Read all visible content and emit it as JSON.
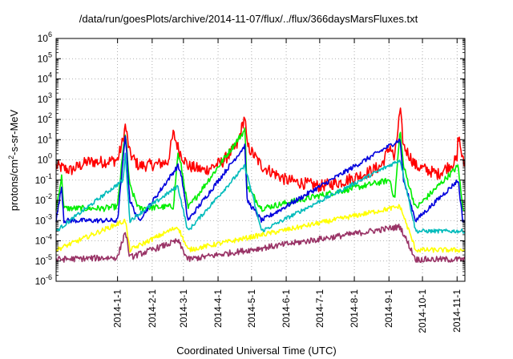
{
  "chart_data": {
    "type": "line",
    "title": "/data/run/goesPlots/archive/2014-11-07/flux/../flux/366daysMarsFluxes.txt",
    "xlabel": "Coordinated Universal Time (UTC)",
    "ylabel_parts": {
      "pre": "protons/cm",
      "sup": "2",
      "post": "-s-sr-MeV"
    },
    "x_ticks": [
      "2014-1-1",
      "2014-2-1",
      "2014-3-1",
      "2014-4-1",
      "2014-5-1",
      "2014-6-1",
      "2014-7-1",
      "2014-8-1",
      "2014-9-1",
      "2014-10-1",
      "2014-11-1"
    ],
    "x_range": [
      "2013-11-07",
      "2014-11-08"
    ],
    "y_scale": "log",
    "y_range": [
      1e-06,
      1000000.0
    ],
    "y_tick_labels": [
      {
        "base": "10",
        "exp": "-6"
      },
      {
        "base": "10",
        "exp": "-5"
      },
      {
        "base": "10",
        "exp": "-4"
      },
      {
        "base": "10",
        "exp": "-3"
      },
      {
        "base": "10",
        "exp": "-2"
      },
      {
        "base": "10",
        "exp": "-1"
      },
      {
        "base": "10",
        "exp": "0"
      },
      {
        "base": "10",
        "exp": "1"
      },
      {
        "base": "10",
        "exp": "2"
      },
      {
        "base": "10",
        "exp": "3"
      },
      {
        "base": "10",
        "exp": "4"
      },
      {
        "base": "10",
        "exp": "5"
      },
      {
        "base": "10",
        "exp": "6"
      }
    ],
    "grid": true,
    "series": [
      {
        "color": "#ff0000",
        "base_log": -0.2,
        "noise": 0.3,
        "points": [
          [
            "2013-11-07",
            0.5
          ],
          [
            "2013-11-20",
            0.3
          ],
          [
            "2013-12-05",
            0.8
          ],
          [
            "2013-12-20",
            0.8
          ],
          [
            "2014-01-01",
            1.0
          ],
          [
            "2014-01-06",
            10.0
          ],
          [
            "2014-01-08",
            50.0
          ],
          [
            "2014-01-12",
            2.0
          ],
          [
            "2014-01-20",
            0.5
          ],
          [
            "2014-02-05",
            0.6
          ],
          [
            "2014-02-15",
            0.8
          ],
          [
            "2014-02-20",
            20.0
          ],
          [
            "2014-02-25",
            3.0
          ],
          [
            "2014-03-05",
            0.5
          ],
          [
            "2014-03-20",
            0.3
          ],
          [
            "2014-04-05",
            0.8
          ],
          [
            "2014-04-18",
            5.0
          ],
          [
            "2014-04-25",
            150.0
          ],
          [
            "2014-04-27",
            5.0
          ],
          [
            "2014-05-10",
            0.5
          ],
          [
            "2014-06-01",
            0.1
          ],
          [
            "2014-07-01",
            0.05
          ],
          [
            "2014-07-20",
            0.08
          ],
          [
            "2014-08-10",
            0.2
          ],
          [
            "2014-08-25",
            0.5
          ],
          [
            "2014-09-02",
            5.0
          ],
          [
            "2014-09-06",
            1.0
          ],
          [
            "2014-09-11",
            300.0
          ],
          [
            "2014-09-14",
            5.0
          ],
          [
            "2014-09-25",
            0.5
          ],
          [
            "2014-10-15",
            0.2
          ],
          [
            "2014-11-01",
            1.0
          ],
          [
            "2014-11-02",
            20.0
          ],
          [
            "2014-11-06",
            1.0
          ],
          [
            "2014-11-08",
            0.5
          ]
        ]
      },
      {
        "color": "#00ee00",
        "base_log": -2.4,
        "noise": 0.15,
        "points": [
          [
            "2013-11-07",
            0.004
          ],
          [
            "2013-11-12",
            0.15
          ],
          [
            "2013-11-14",
            0.004
          ],
          [
            "2013-12-20",
            0.004
          ],
          [
            "2014-01-01",
            0.005
          ],
          [
            "2014-01-06",
            3.0
          ],
          [
            "2014-01-08",
            20.0
          ],
          [
            "2014-01-12",
            0.05
          ],
          [
            "2014-01-20",
            0.004
          ],
          [
            "2014-02-20",
            0.005
          ],
          [
            "2014-02-24",
            2.0
          ],
          [
            "2014-02-27",
            0.5
          ],
          [
            "2014-03-05",
            0.004
          ],
          [
            "2014-04-25",
            30.0
          ],
          [
            "2014-04-27",
            0.05
          ],
          [
            "2014-05-10",
            0.004
          ],
          [
            "2014-09-02",
            0.1
          ],
          [
            "2014-09-06",
            0.01
          ],
          [
            "2014-09-11",
            30.0
          ],
          [
            "2014-09-14",
            0.5
          ],
          [
            "2014-09-25",
            0.004
          ],
          [
            "2014-11-02",
            0.5
          ],
          [
            "2014-11-06",
            0.004
          ]
        ]
      },
      {
        "color": "#0000dd",
        "base_log": -2.9,
        "noise": 0.12,
        "points": [
          [
            "2013-11-07",
            0.001
          ],
          [
            "2013-11-12",
            0.05
          ],
          [
            "2013-11-14",
            0.001
          ],
          [
            "2014-01-01",
            0.001
          ],
          [
            "2014-01-06",
            1.0
          ],
          [
            "2014-01-08",
            20.0
          ],
          [
            "2014-01-12",
            0.01
          ],
          [
            "2014-01-20",
            0.001
          ],
          [
            "2014-02-24",
            0.5
          ],
          [
            "2014-02-27",
            0.2
          ],
          [
            "2014-03-05",
            0.001
          ],
          [
            "2014-04-25",
            5.0
          ],
          [
            "2014-04-27",
            0.01
          ],
          [
            "2014-05-10",
            0.001
          ],
          [
            "2014-09-11",
            10.0
          ],
          [
            "2014-09-14",
            0.1
          ],
          [
            "2014-09-25",
            0.001
          ],
          [
            "2014-11-02",
            0.1
          ],
          [
            "2014-11-06",
            0.001
          ]
        ]
      },
      {
        "color": "#00bbbb",
        "base_log": -3.5,
        "noise": 0.1,
        "points": [
          [
            "2013-11-07",
            0.0003
          ],
          [
            "2014-01-06",
            0.1
          ],
          [
            "2014-01-08",
            2.0
          ],
          [
            "2014-01-12",
            0.001
          ],
          [
            "2014-02-24",
            0.05
          ],
          [
            "2014-03-05",
            0.0003
          ],
          [
            "2014-04-25",
            0.5
          ],
          [
            "2014-05-10",
            0.0003
          ],
          [
            "2014-09-11",
            1.0
          ],
          [
            "2014-09-25",
            0.0003
          ],
          [
            "2014-11-06",
            0.0003
          ]
        ]
      },
      {
        "color": "#ffff00",
        "base_log": -4.4,
        "noise": 0.12,
        "points": [
          [
            "2013-11-07",
            3.5e-05
          ],
          [
            "2014-01-08",
            0.001
          ],
          [
            "2014-01-12",
            3.5e-05
          ],
          [
            "2014-02-24",
            0.0005
          ],
          [
            "2014-03-05",
            3.5e-05
          ],
          [
            "2014-09-11",
            0.005
          ],
          [
            "2014-09-25",
            3.5e-05
          ],
          [
            "2014-11-06",
            3.5e-05
          ]
        ]
      },
      {
        "color": "#993366",
        "base_log": -4.9,
        "noise": 0.15,
        "points": [
          [
            "2013-11-07",
            1.2e-05
          ],
          [
            "2014-01-01",
            1.5e-05
          ],
          [
            "2014-01-08",
            0.0003
          ],
          [
            "2014-01-12",
            1.5e-05
          ],
          [
            "2014-02-24",
            0.0001
          ],
          [
            "2014-03-05",
            1.2e-05
          ],
          [
            "2014-09-11",
            0.0005
          ],
          [
            "2014-09-25",
            1.2e-05
          ],
          [
            "2014-11-06",
            1.2e-05
          ]
        ]
      }
    ]
  }
}
